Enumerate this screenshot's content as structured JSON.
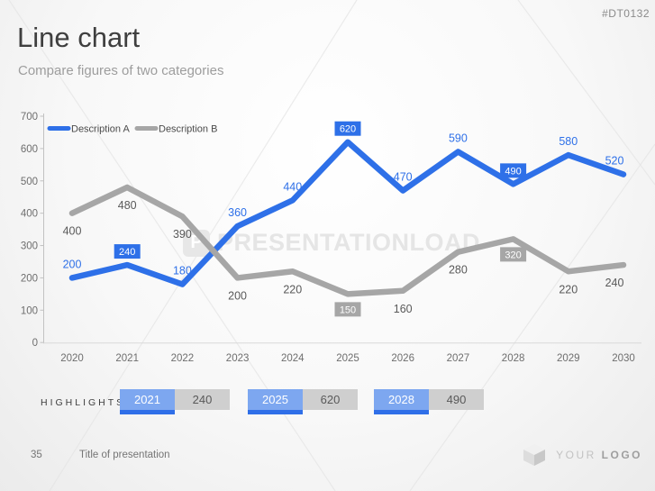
{
  "slide": {
    "code": "#DT0132",
    "title": "Line chart",
    "subtitle": "Compare figures of two categories",
    "watermark_text": "PRESENTATIONLOAD",
    "watermark_icon_letter": "P",
    "page_number": "35",
    "footer_title": "Title of presentation",
    "logo_word_light": "YOUR",
    "logo_word_bold": "LOGO"
  },
  "colors": {
    "accent_blue": "#2e70e8",
    "light_blue": "#7da7f0",
    "series_gray": "#a6a6a6",
    "value_gray_text": "#595959",
    "axis_line": "#c2c2c2",
    "tick_text": "#6e6e6e",
    "box_label_text": "#ffffff"
  },
  "chart_data": {
    "type": "line",
    "title": "",
    "xlabel": "",
    "ylabel": "",
    "categories": [
      "2020",
      "2021",
      "2022",
      "2023",
      "2024",
      "2025",
      "2026",
      "2027",
      "2028",
      "2029",
      "2030"
    ],
    "series": [
      {
        "name": "Description A",
        "color": "#2e70e8",
        "label_color": "#2e70e8",
        "label_side": "above",
        "values": [
          200,
          240,
          180,
          360,
          440,
          620,
          470,
          590,
          490,
          580,
          520
        ],
        "boxed_indices": [
          1,
          5,
          8
        ]
      },
      {
        "name": "Description B",
        "color": "#a6a6a6",
        "label_color": "#595959",
        "label_side": "below",
        "values": [
          400,
          480,
          390,
          200,
          220,
          150,
          160,
          280,
          320,
          220,
          240
        ],
        "boxed_indices": [
          5,
          8
        ]
      }
    ],
    "ylim": [
      0,
      700
    ],
    "yticks": [
      0,
      100,
      200,
      300,
      400,
      500,
      600,
      700
    ],
    "grid": false,
    "legend_position": "top-left"
  },
  "highlights": {
    "label": "HIGHLIGHTS",
    "items": [
      {
        "year": "2021",
        "value": "240"
      },
      {
        "year": "2025",
        "value": "620"
      },
      {
        "year": "2028",
        "value": "490"
      }
    ]
  }
}
